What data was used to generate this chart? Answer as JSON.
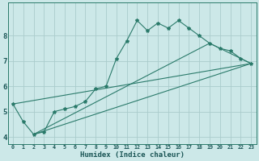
{
  "title": "",
  "xlabel": "Humidex (Indice chaleur)",
  "bg_color": "#cce8e8",
  "grid_color": "#aacccc",
  "line_color": "#2a7a6a",
  "xlim": [
    -0.5,
    23.5
  ],
  "ylim": [
    3.7,
    9.3
  ],
  "xtick_labels": [
    "0",
    "1",
    "2",
    "3",
    "4",
    "5",
    "6",
    "7",
    "8",
    "9",
    "10",
    "11",
    "12",
    "13",
    "14",
    "15",
    "16",
    "17",
    "18",
    "19",
    "20",
    "21",
    "22",
    "23"
  ],
  "ytick_values": [
    4,
    5,
    6,
    7,
    8
  ],
  "main_x": [
    0,
    1,
    2,
    3,
    4,
    5,
    6,
    7,
    8,
    9,
    10,
    11,
    12,
    13,
    14,
    15,
    16,
    17,
    18,
    19,
    20,
    21,
    22,
    23
  ],
  "main_y": [
    5.3,
    4.6,
    4.1,
    4.2,
    5.0,
    5.1,
    5.2,
    5.4,
    5.9,
    6.0,
    7.1,
    7.8,
    8.6,
    8.2,
    8.5,
    8.3,
    8.6,
    8.3,
    8.0,
    7.7,
    7.5,
    7.4,
    7.1,
    6.9
  ],
  "tri_line1_x": [
    0,
    23
  ],
  "tri_line1_y": [
    5.3,
    6.9
  ],
  "tri_line2_x": [
    2,
    23
  ],
  "tri_line2_y": [
    4.1,
    6.9
  ],
  "tri_line3_x": [
    2,
    19,
    23
  ],
  "tri_line3_y": [
    4.1,
    7.7,
    6.9
  ]
}
